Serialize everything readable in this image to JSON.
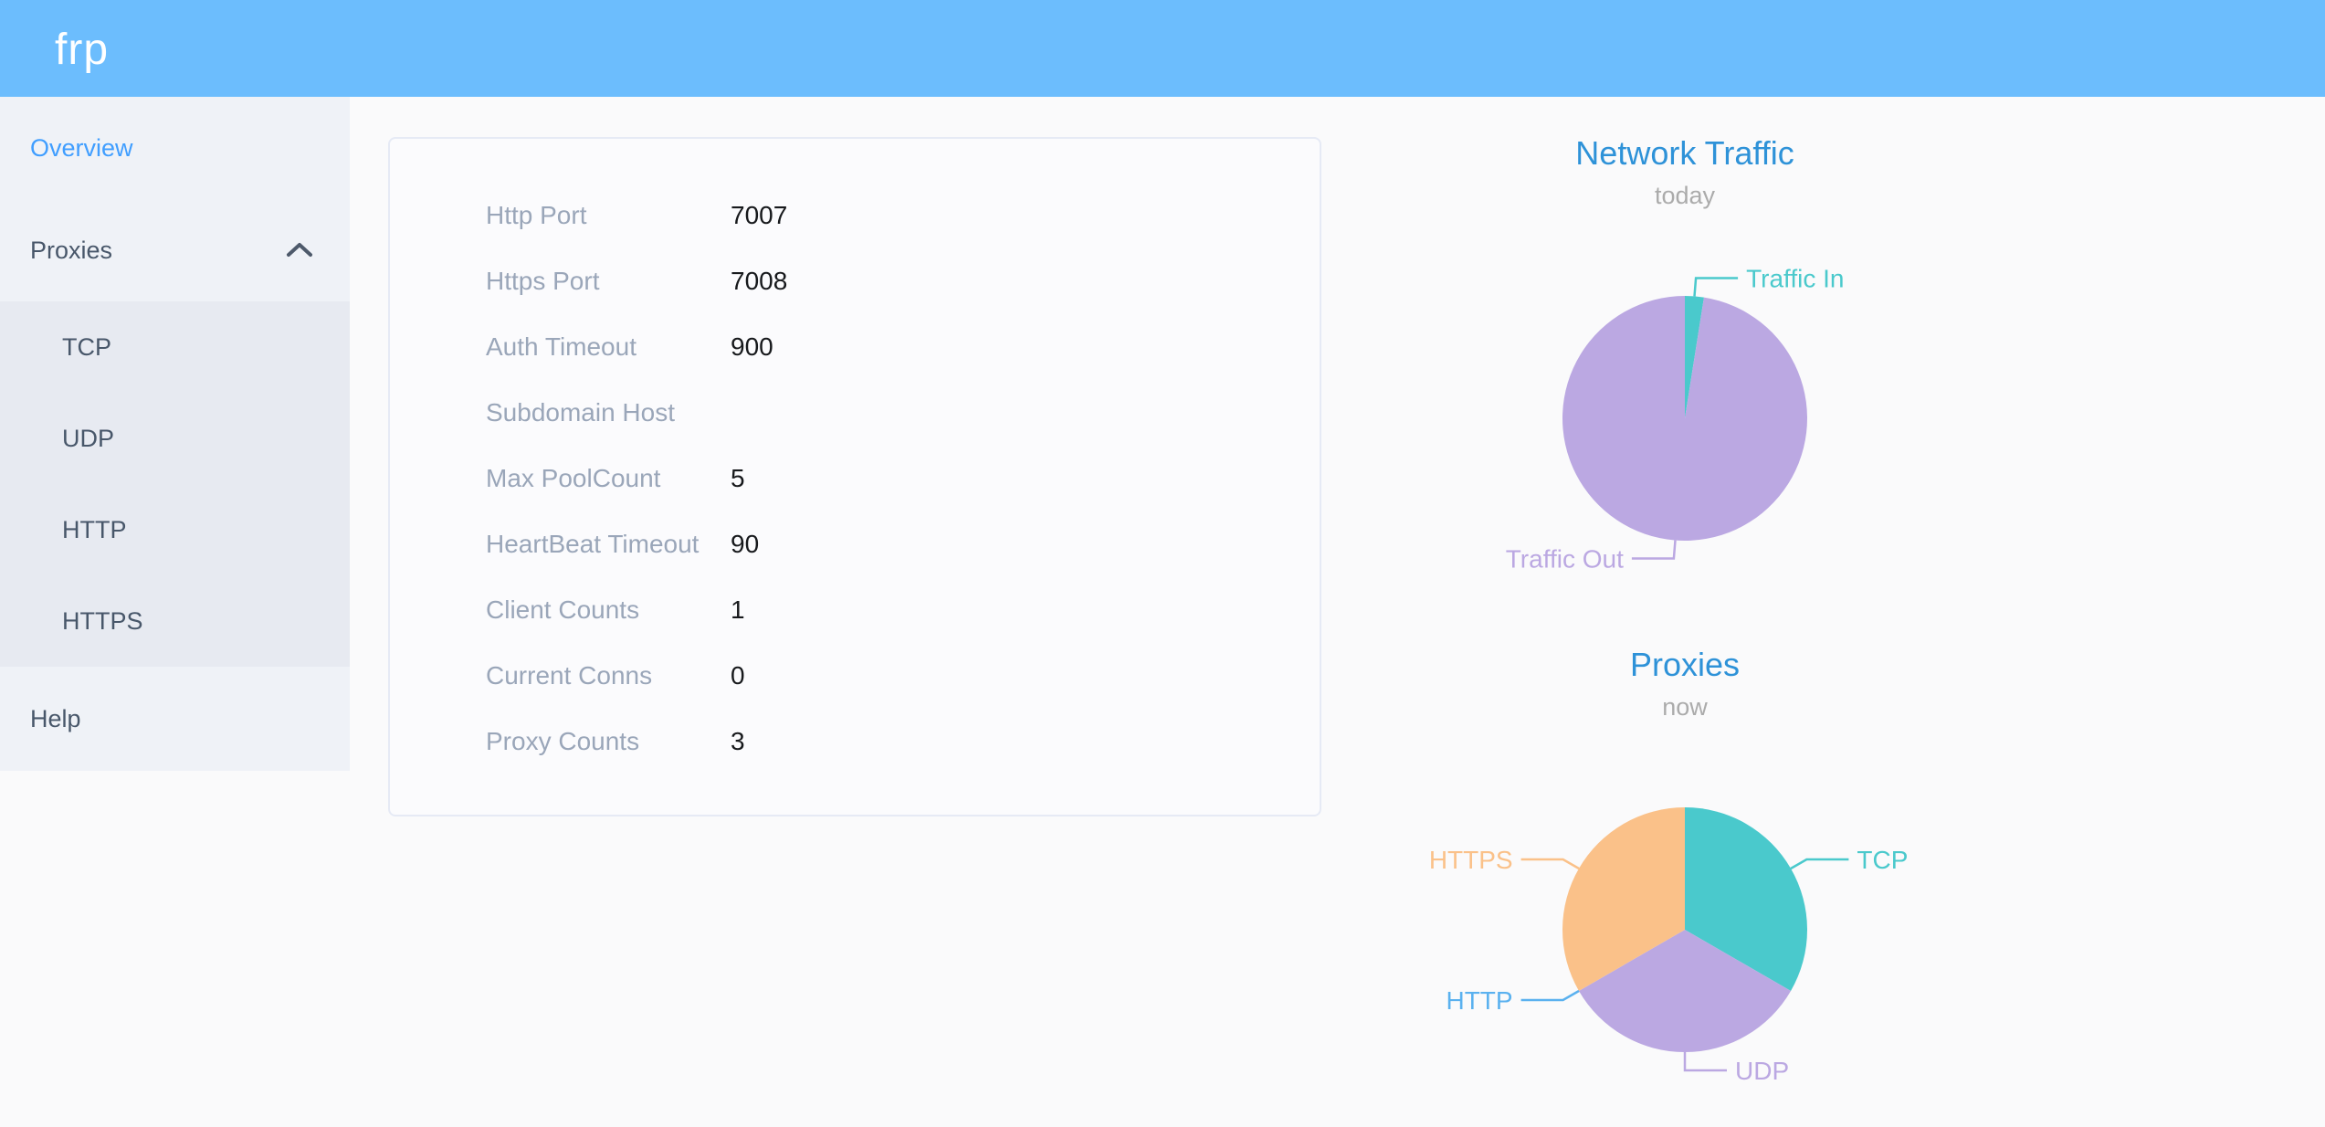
{
  "header": {
    "logo": "frp"
  },
  "sidebar": {
    "items": [
      {
        "label": "Overview",
        "active": true
      },
      {
        "label": "Proxies",
        "expanded": true,
        "children": [
          "TCP",
          "UDP",
          "HTTP",
          "HTTPS"
        ]
      },
      {
        "label": "Help"
      }
    ]
  },
  "overview_card": {
    "rows": [
      {
        "label": "Http Port",
        "value": "7007"
      },
      {
        "label": "Https Port",
        "value": "7008"
      },
      {
        "label": "Auth Timeout",
        "value": "900"
      },
      {
        "label": "Subdomain Host",
        "value": ""
      },
      {
        "label": "Max PoolCount",
        "value": "5"
      },
      {
        "label": "HeartBeat Timeout",
        "value": "90"
      },
      {
        "label": "Client Counts",
        "value": "1"
      },
      {
        "label": "Current Conns",
        "value": "0"
      },
      {
        "label": "Proxy Counts",
        "value": "3"
      }
    ]
  },
  "chart_data": [
    {
      "type": "pie",
      "title": "Network Traffic",
      "subtitle": "today",
      "unit": "percent of total (estimated from arc angles; no numeric labels shown)",
      "labels": "outside",
      "legend": "none",
      "series": [
        {
          "name": "Traffic In",
          "value": 2.5,
          "color": "#4AC9CC"
        },
        {
          "name": "Traffic Out",
          "value": 97.5,
          "color": "#BBA8E2"
        }
      ]
    },
    {
      "type": "pie",
      "title": "Proxies",
      "subtitle": "now",
      "unit": "proxy count (Proxy Counts total = 3)",
      "labels": "outside",
      "legend": "none",
      "series": [
        {
          "name": "TCP",
          "value": 1,
          "color": "#4AC9CC"
        },
        {
          "name": "UDP",
          "value": 1,
          "color": "#BBA8E2"
        },
        {
          "name": "HTTP",
          "value": 0,
          "color": "#5AB1EF"
        },
        {
          "name": "HTTPS",
          "value": 1,
          "color": "#FAC189"
        }
      ]
    }
  ],
  "colors": {
    "header_bg": "#6CBDFD",
    "sidebar_bg": "#EFF2F7",
    "submenu_bg": "#E7EAF1",
    "menu_text": "#48576A",
    "menu_active_text": "#409EFF",
    "page_bg": "#FAFAFB",
    "card_border": "#E6EAF5",
    "config_label_gray": "#9AA6B9",
    "config_value_black": "#17191C",
    "chart_title_blue": "#2E92D8",
    "chart_subtitle_gray": "#ABABAB"
  }
}
